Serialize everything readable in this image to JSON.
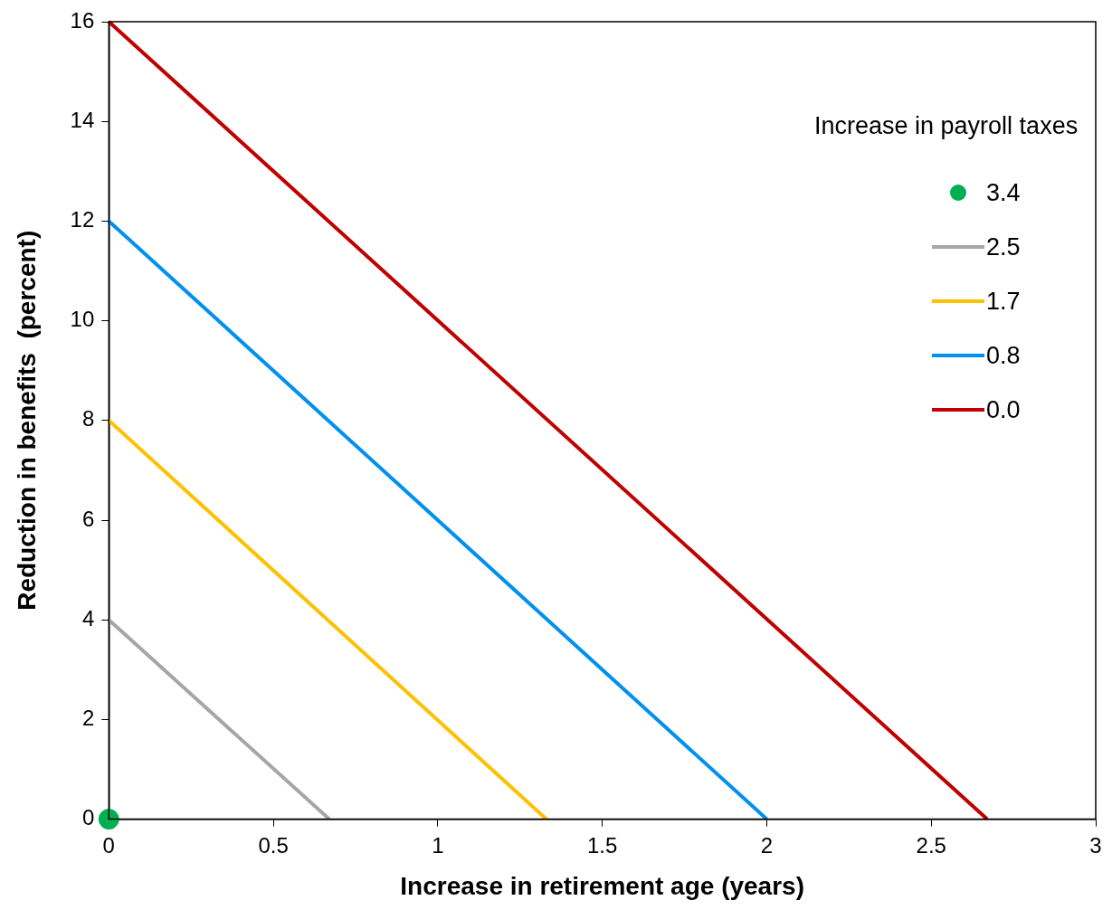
{
  "chart_data": {
    "type": "line",
    "xlabel": "Increase in retirement age (years)",
    "ylabel": "Reduction in benefits  (percent)",
    "legend_title": "Increase in payroll taxes",
    "xlim": [
      0,
      3
    ],
    "xticks": [
      0,
      0.5,
      1,
      1.5,
      2,
      2.5,
      3
    ],
    "ylim": [
      0,
      16
    ],
    "yticks": [
      0,
      2,
      4,
      6,
      8,
      10,
      12,
      14,
      16
    ],
    "grid": false,
    "legend": "top right",
    "line_style": "solid",
    "series": [
      {
        "name": "3.4",
        "type": "scatter",
        "marker": "circle",
        "color": "#00b050",
        "x": [
          0
        ],
        "values": [
          0
        ]
      },
      {
        "name": "2.5",
        "color": "#a6a6a6",
        "x": [
          0,
          0.67
        ],
        "values": [
          4,
          0
        ]
      },
      {
        "name": "1.7",
        "color": "#ffc000",
        "x": [
          0,
          1.33
        ],
        "values": [
          8,
          0
        ]
      },
      {
        "name": "0.8",
        "color": "#0090f0",
        "x": [
          0,
          2
        ],
        "values": [
          12,
          0
        ]
      },
      {
        "name": "0.0",
        "color": "#c00000",
        "x": [
          0,
          2.67
        ],
        "values": [
          16,
          0
        ]
      }
    ]
  }
}
